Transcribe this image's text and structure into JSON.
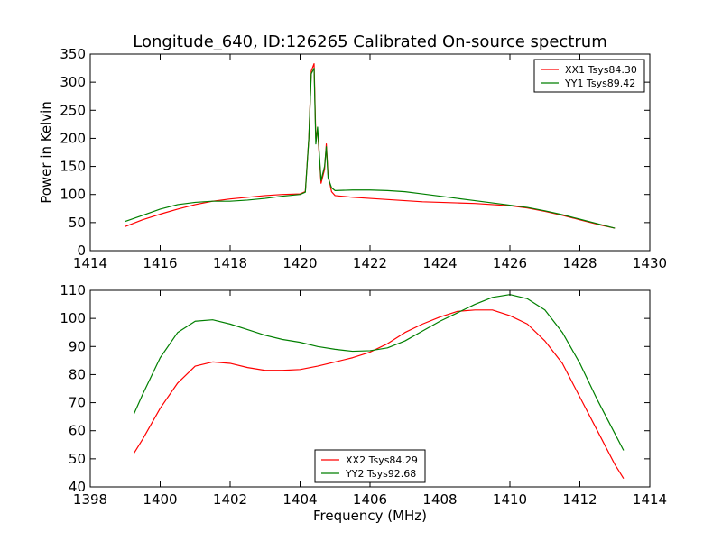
{
  "chart_data": [
    {
      "type": "line",
      "title": "Longitude_640, ID:126265 Calibrated On-source spectrum",
      "xlabel": "",
      "ylabel": "Power in Kelvin",
      "xlim": [
        1414,
        1430
      ],
      "ylim": [
        0,
        350
      ],
      "xticks": [
        1414,
        1416,
        1418,
        1420,
        1422,
        1424,
        1426,
        1428,
        1430
      ],
      "yticks": [
        0,
        50,
        100,
        150,
        200,
        250,
        300,
        350
      ],
      "grid": false,
      "legend_position": "top-right",
      "series": [
        {
          "name": "XX1 Tsys84.30",
          "color": "#ff0000",
          "x": [
            1415.0,
            1415.5,
            1416.0,
            1416.5,
            1417.0,
            1417.5,
            1418.0,
            1418.5,
            1419.0,
            1419.5,
            1420.0,
            1420.15,
            1420.25,
            1420.32,
            1420.4,
            1420.45,
            1420.5,
            1420.6,
            1420.7,
            1420.75,
            1420.8,
            1420.9,
            1421.0,
            1421.5,
            1422.0,
            1422.5,
            1423.0,
            1423.5,
            1424.0,
            1424.5,
            1425.0,
            1425.5,
            1426.0,
            1426.5,
            1427.0,
            1427.5,
            1428.0,
            1428.5,
            1429.0
          ],
          "y": [
            43,
            55,
            65,
            74,
            82,
            88,
            92,
            95,
            98,
            100,
            101,
            105,
            200,
            320,
            333,
            200,
            215,
            120,
            145,
            190,
            135,
            105,
            98,
            95,
            93,
            91,
            89,
            87,
            86,
            85,
            84,
            82,
            80,
            76,
            70,
            63,
            55,
            47,
            40
          ]
        },
        {
          "name": "YY1 Tsys89.42",
          "color": "#007f00",
          "x": [
            1415.0,
            1415.5,
            1416.0,
            1416.5,
            1417.0,
            1417.5,
            1418.0,
            1418.5,
            1419.0,
            1419.5,
            1420.0,
            1420.15,
            1420.25,
            1420.32,
            1420.4,
            1420.45,
            1420.5,
            1420.6,
            1420.7,
            1420.75,
            1420.8,
            1420.9,
            1421.0,
            1421.5,
            1422.0,
            1422.5,
            1423.0,
            1423.5,
            1424.0,
            1424.5,
            1425.0,
            1425.5,
            1426.0,
            1426.5,
            1427.0,
            1427.5,
            1428.0,
            1428.5,
            1429.0
          ],
          "y": [
            52,
            63,
            74,
            82,
            86,
            88,
            88,
            90,
            93,
            97,
            100,
            104,
            200,
            315,
            325,
            190,
            220,
            125,
            150,
            185,
            130,
            112,
            107,
            108,
            108,
            107,
            105,
            101,
            97,
            93,
            89,
            85,
            81,
            77,
            71,
            64,
            56,
            48,
            40
          ]
        }
      ]
    },
    {
      "type": "line",
      "title": "",
      "xlabel": "Frequency (MHz)",
      "ylabel": "",
      "xlim": [
        1398,
        1414
      ],
      "ylim": [
        40,
        110
      ],
      "xticks": [
        1398,
        1400,
        1402,
        1404,
        1406,
        1408,
        1410,
        1412,
        1414
      ],
      "yticks": [
        40,
        50,
        60,
        70,
        80,
        90,
        100,
        110
      ],
      "grid": false,
      "legend_position": "bottom-center",
      "series": [
        {
          "name": "XX2 Tsys84.29",
          "color": "#ff0000",
          "x": [
            1399.25,
            1399.5,
            1400.0,
            1400.5,
            1401.0,
            1401.5,
            1402.0,
            1402.5,
            1403.0,
            1403.5,
            1404.0,
            1404.5,
            1405.0,
            1405.5,
            1406.0,
            1406.5,
            1407.0,
            1407.5,
            1408.0,
            1408.5,
            1409.0,
            1409.5,
            1410.0,
            1410.5,
            1411.0,
            1411.5,
            1412.0,
            1412.5,
            1413.0,
            1413.25
          ],
          "y": [
            52,
            57,
            68,
            77,
            83,
            84.5,
            84,
            82.5,
            81.5,
            81.5,
            81.8,
            83,
            84.5,
            86,
            88,
            91,
            95,
            98,
            100.5,
            102.5,
            103,
            103,
            101,
            98,
            92,
            84,
            72,
            60,
            48,
            43
          ]
        },
        {
          "name": "YY2 Tsys92.68",
          "color": "#007f00",
          "x": [
            1399.25,
            1399.5,
            1400.0,
            1400.5,
            1401.0,
            1401.5,
            1402.0,
            1402.5,
            1403.0,
            1403.5,
            1404.0,
            1404.5,
            1405.0,
            1405.5,
            1406.0,
            1406.5,
            1407.0,
            1407.5,
            1408.0,
            1408.5,
            1409.0,
            1409.5,
            1410.0,
            1410.5,
            1411.0,
            1411.5,
            1412.0,
            1412.5,
            1413.0,
            1413.25
          ],
          "y": [
            66,
            73,
            86,
            95,
            99,
            99.5,
            98,
            96,
            94,
            92.5,
            91.5,
            90,
            89,
            88.3,
            88.5,
            89.5,
            92,
            95.5,
            99,
            102,
            105,
            107.5,
            108.5,
            107,
            103,
            95,
            84,
            71,
            59,
            53
          ]
        }
      ]
    }
  ]
}
